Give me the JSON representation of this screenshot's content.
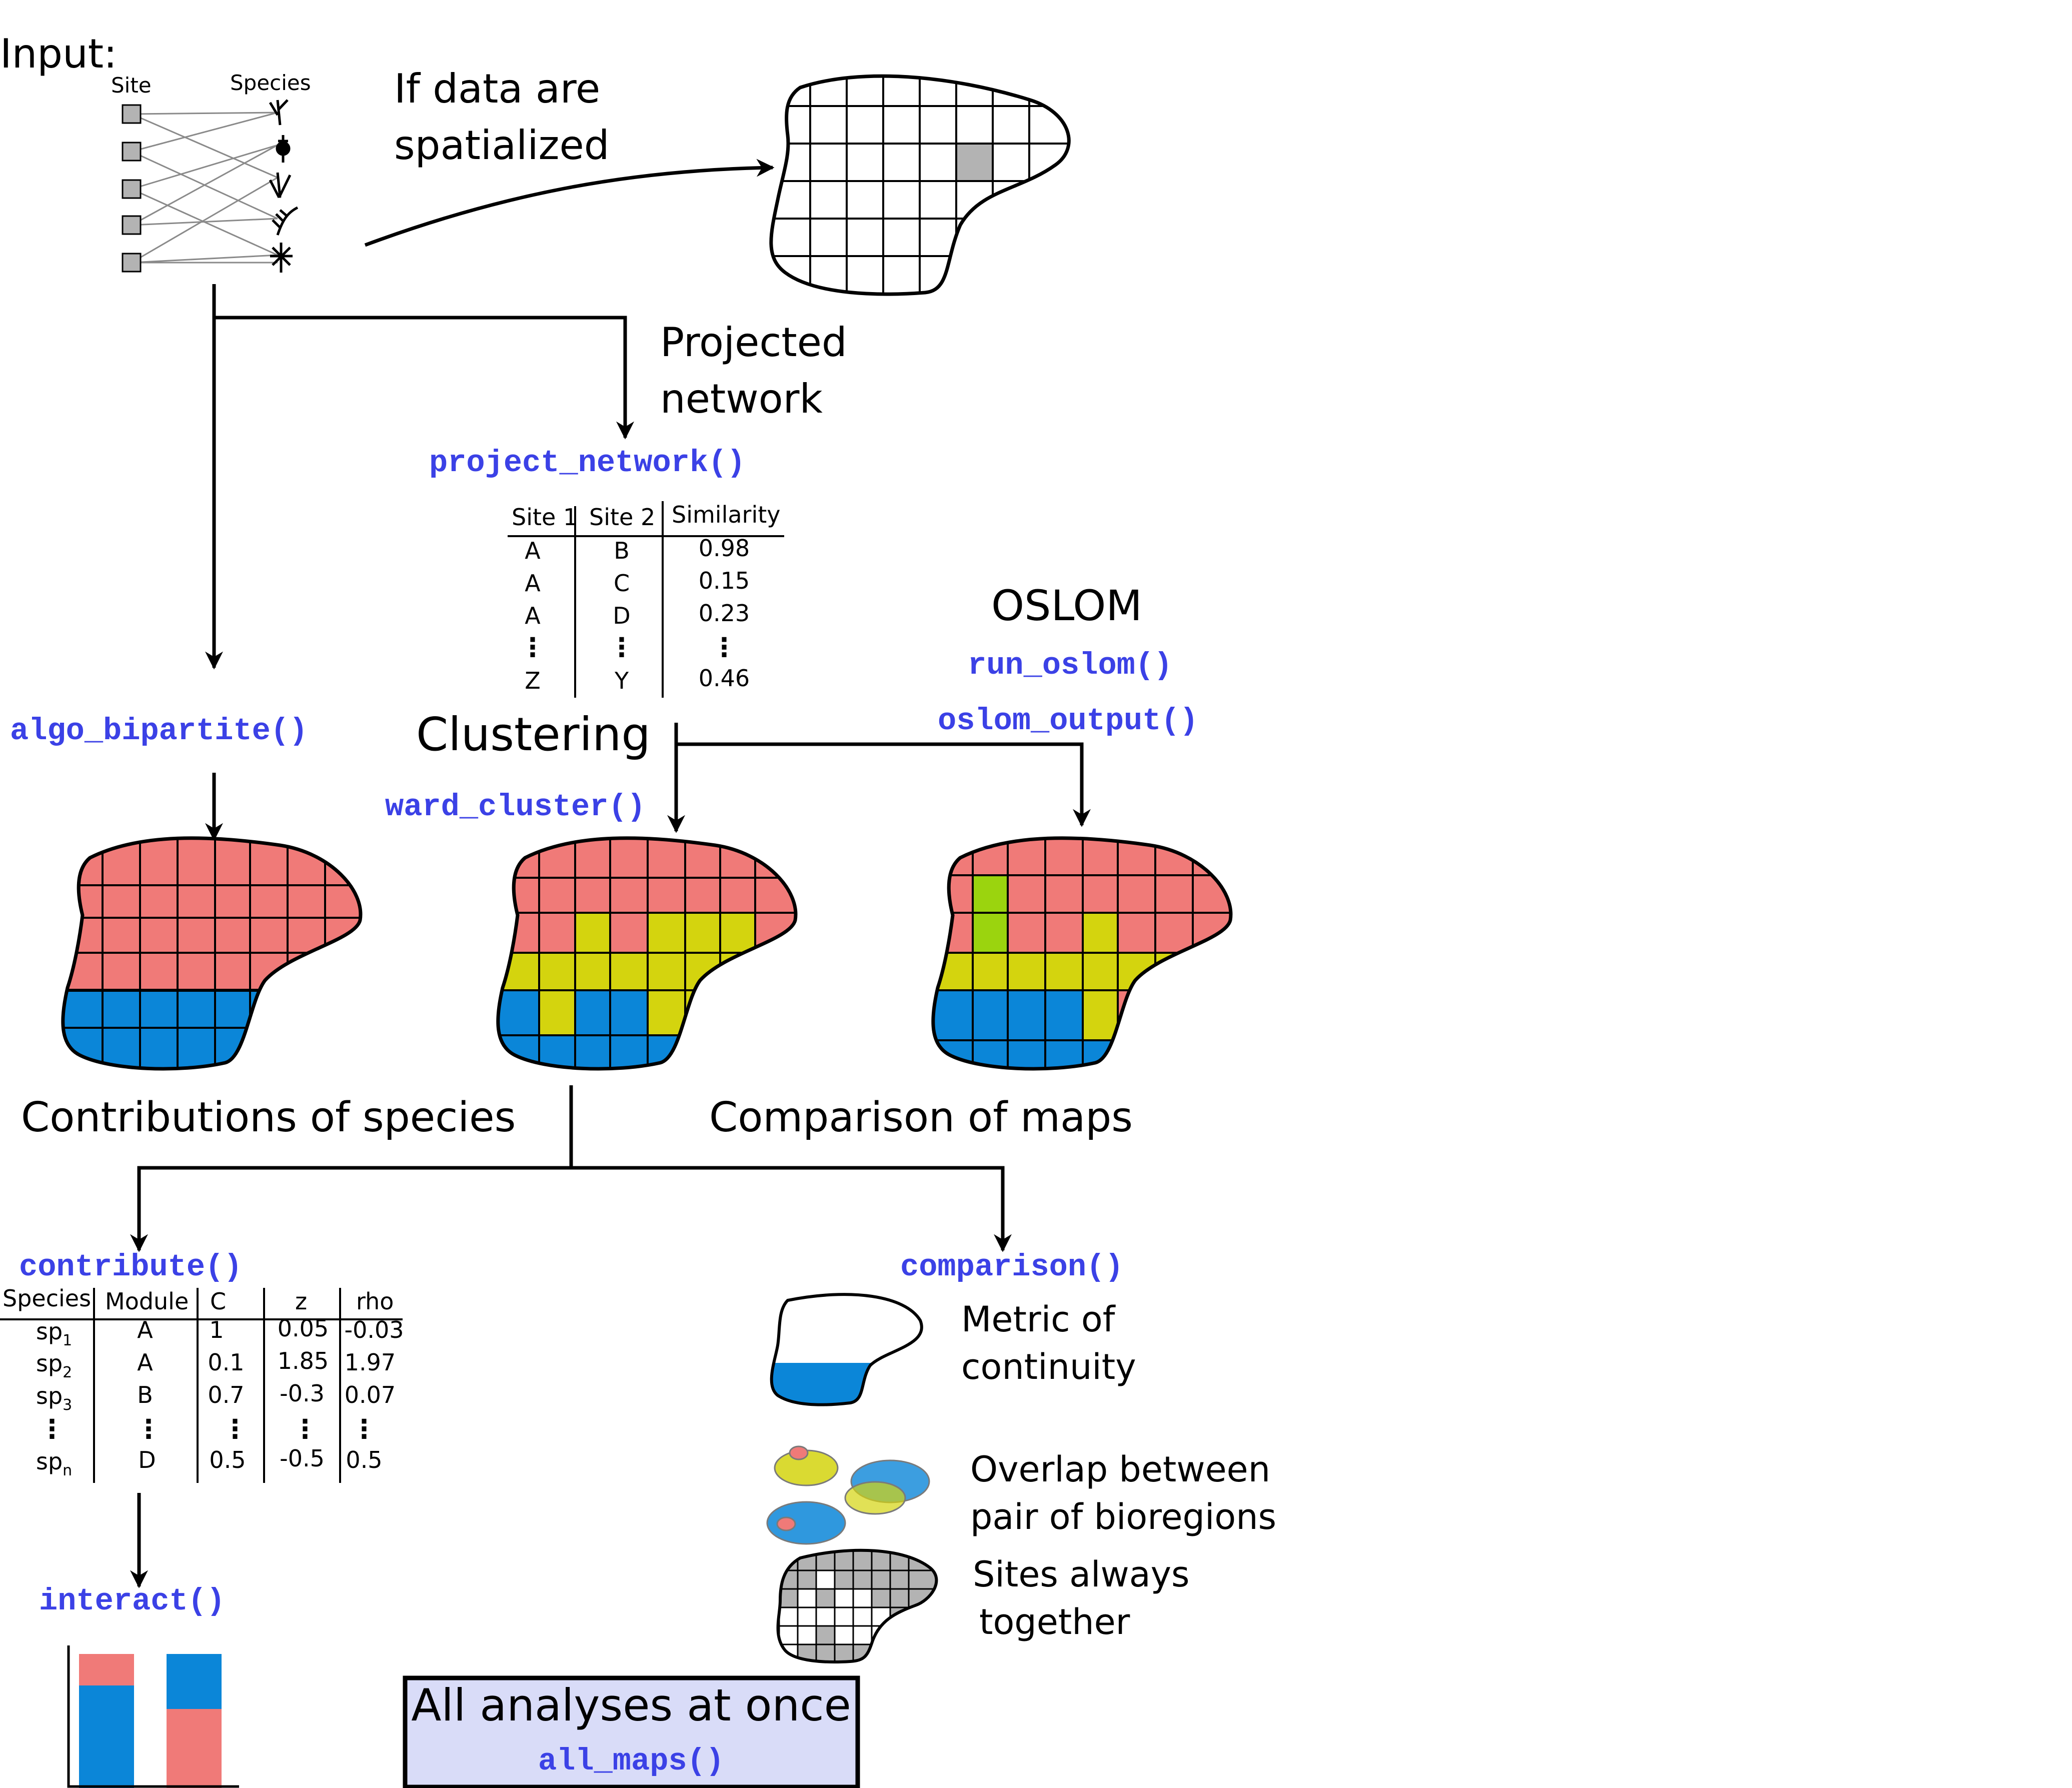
{
  "input": {
    "label": "Input:",
    "site_header": "Site",
    "species_header": "Species"
  },
  "spatial_label": [
    "If data are",
    "spatialized"
  ],
  "projected_label": [
    "Projected",
    "network"
  ],
  "functions": {
    "project_network": "project_network()",
    "algo_bipartite": "algo_bipartite()",
    "run_oslom": "run_oslom()",
    "oslom_output": "oslom_output()",
    "ward_cluster": "ward_cluster()",
    "contribute": "contribute()",
    "comparison": "comparison()",
    "interact": "interact()",
    "all_maps": "all_maps()"
  },
  "similarity_table": {
    "headers": [
      "Site 1",
      "Site 2",
      "Similarity"
    ],
    "rows": [
      [
        "A",
        "B",
        "0.98"
      ],
      [
        "A",
        "C",
        "0.15"
      ],
      [
        "A",
        "D",
        "0.23"
      ],
      [
        "⋮",
        "⋮",
        "⋮"
      ],
      [
        "Z",
        "Y",
        "0.46"
      ]
    ]
  },
  "oslom_label": "OSLOM",
  "clustering_label": "Clustering",
  "contributions_label": "Contributions of species",
  "comparison_label": "Comparison of maps",
  "contribute_table": {
    "headers": [
      "Species",
      "Module",
      "C",
      "z",
      "rho"
    ],
    "rows": [
      [
        "sp",
        "1",
        "A",
        "1",
        "0.05",
        "-0.03"
      ],
      [
        "sp",
        "2",
        "A",
        "0.1",
        "1.85",
        "1.97"
      ],
      [
        "sp",
        "3",
        "B",
        "0.7",
        "-0.3",
        "0.07"
      ],
      [
        "⋮",
        "",
        "⋮",
        "⋮",
        "⋮",
        "⋮"
      ],
      [
        "sp",
        "n",
        "D",
        "0.5",
        "-0.5",
        "0.5"
      ]
    ]
  },
  "metric_label": [
    "Metric of",
    "continuity"
  ],
  "overlap_label": [
    "Overlap between",
    "pair of bioregions"
  ],
  "sites_label": [
    "Sites always",
    "together"
  ],
  "all_analyses_label": "All analyses at once",
  "colors": {
    "red": "#f07a78",
    "blue": "#0b86d8",
    "yellow": "#d4d40e",
    "green": "#9bd40e",
    "fn": "#3b41e6",
    "box": "#d9dcf8",
    "grey": "#b3b3b3"
  }
}
